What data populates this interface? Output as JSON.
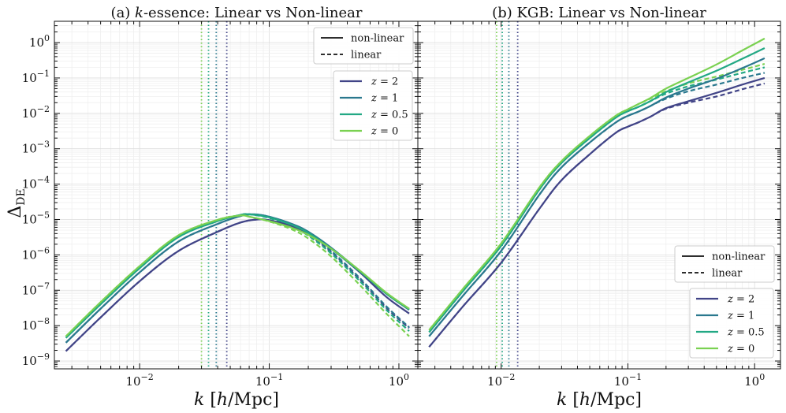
{
  "figure": {
    "ylabel": "Δ",
    "ylabel_sub": "DE",
    "xlabel": "k [h/Mpc]"
  },
  "chart_data": [
    {
      "type": "line",
      "title": "(a) k-essence: Linear vs Non-linear",
      "title_prefix": "(a) ",
      "title_italic": "k",
      "title_suffix": "-essence: Linear vs Non-linear",
      "xlabel": "k [h/Mpc]",
      "ylabel": "Δ_DE",
      "xscale": "log",
      "yscale": "log",
      "xlim": [
        0.0022,
        1.4
      ],
      "ylim": [
        6e-10,
        4
      ],
      "xticks": [
        {
          "v": 0.01,
          "label": "10^-2"
        },
        {
          "v": 0.1,
          "label": "10^-1"
        },
        {
          "v": 1,
          "label": "10^0"
        }
      ],
      "yticks": [
        {
          "v": 1e-09,
          "label": "10^-9"
        },
        {
          "v": 1e-08,
          "label": "10^-8"
        },
        {
          "v": 1e-07,
          "label": "10^-7"
        },
        {
          "v": 1e-06,
          "label": "10^-6"
        },
        {
          "v": 1e-05,
          "label": "10^-5"
        },
        {
          "v": 0.0001,
          "label": "10^-4"
        },
        {
          "v": 0.001,
          "label": "10^-3"
        },
        {
          "v": 0.01,
          "label": "10^-2"
        },
        {
          "v": 0.1,
          "label": "10^-1"
        },
        {
          "v": 1,
          "label": "10^0"
        }
      ],
      "grid": true,
      "vlines": [
        {
          "x": 0.047,
          "color": "#414487"
        },
        {
          "x": 0.039,
          "color": "#2a788e"
        },
        {
          "x": 0.034,
          "color": "#22a884"
        },
        {
          "x": 0.03,
          "color": "#7ad151"
        }
      ],
      "series": [
        {
          "name": "z = 2",
          "z": "2",
          "color": "#414487",
          "style": "non-linear",
          "x": [
            0.0027,
            0.005,
            0.01,
            0.02,
            0.04,
            0.06,
            0.08,
            0.1,
            0.15,
            0.2,
            0.3,
            0.5,
            0.8,
            1.2
          ],
          "y": [
            1.9e-09,
            1.7e-08,
            1.8e-07,
            1.3e-06,
            4.5e-06,
            8.2e-06,
            1e-05,
            9.5e-06,
            6.5e-06,
            4e-06,
            1.5e-06,
            3.2e-07,
            6.5e-08,
            2.2e-08
          ]
        },
        {
          "name": "z = 2",
          "z": "2",
          "color": "#414487",
          "style": "linear",
          "x": [
            0.0027,
            0.005,
            0.01,
            0.02,
            0.04,
            0.06,
            0.08,
            0.1,
            0.15,
            0.2,
            0.3,
            0.5,
            0.8,
            1.2
          ],
          "y": [
            1.9e-09,
            1.7e-08,
            1.8e-07,
            1.3e-06,
            4.5e-06,
            8.2e-06,
            1e-05,
            9.5e-06,
            6.3e-06,
            3.7e-06,
            1.2e-06,
            2e-07,
            3.2e-08,
            8.5e-09
          ]
        },
        {
          "name": "z = 1",
          "z": "1",
          "color": "#2a788e",
          "style": "non-linear",
          "x": [
            0.0027,
            0.005,
            0.01,
            0.02,
            0.04,
            0.06,
            0.075,
            0.1,
            0.15,
            0.2,
            0.3,
            0.5,
            0.8,
            1.2
          ],
          "y": [
            3.3e-09,
            3e-08,
            3.2e-07,
            2.4e-06,
            7.5e-06,
            1.25e-05,
            1.4e-05,
            1.2e-05,
            7.5e-06,
            4.5e-06,
            1.6e-06,
            3.5e-07,
            8e-08,
            2.8e-08
          ]
        },
        {
          "name": "z = 1",
          "z": "1",
          "color": "#2a788e",
          "style": "linear",
          "x": [
            0.0027,
            0.005,
            0.01,
            0.02,
            0.04,
            0.06,
            0.075,
            0.1,
            0.15,
            0.2,
            0.3,
            0.5,
            0.8,
            1.2
          ],
          "y": [
            3.3e-09,
            3e-08,
            3.2e-07,
            2.4e-06,
            7.5e-06,
            1.25e-05,
            1.4e-05,
            1.2e-05,
            7.2e-06,
            4.1e-06,
            1.3e-06,
            2.2e-07,
            3.5e-08,
            9e-09
          ]
        },
        {
          "name": "z = 0.5",
          "z": "0.5",
          "color": "#22a884",
          "style": "non-linear",
          "x": [
            0.0027,
            0.005,
            0.01,
            0.02,
            0.04,
            0.06,
            0.07,
            0.1,
            0.15,
            0.2,
            0.3,
            0.5,
            0.8,
            1.2
          ],
          "y": [
            4.5e-09,
            4e-08,
            4.2e-07,
            3.2e-06,
            9e-06,
            1.35e-05,
            1.4e-05,
            1.15e-05,
            7e-06,
            4.2e-06,
            1.5e-06,
            3.4e-07,
            8e-08,
            2.9e-08
          ]
        },
        {
          "name": "z = 0.5",
          "z": "0.5",
          "color": "#22a884",
          "style": "linear",
          "x": [
            0.0027,
            0.005,
            0.01,
            0.02,
            0.04,
            0.06,
            0.07,
            0.1,
            0.15,
            0.2,
            0.3,
            0.5,
            0.8,
            1.2
          ],
          "y": [
            4.5e-09,
            4e-08,
            4.2e-07,
            3.2e-06,
            9e-06,
            1.35e-05,
            1.4e-05,
            1.1e-05,
            6.3e-06,
            3.5e-06,
            1.1e-06,
            1.8e-07,
            2.8e-08,
            7e-09
          ]
        },
        {
          "name": "z = 0",
          "z": "0",
          "color": "#7ad151",
          "style": "non-linear",
          "x": [
            0.0027,
            0.005,
            0.01,
            0.02,
            0.04,
            0.06,
            0.07,
            0.1,
            0.15,
            0.2,
            0.3,
            0.5,
            0.8,
            1.2
          ],
          "y": [
            5e-09,
            4.6e-08,
            4.8e-07,
            3.6e-06,
            9.8e-06,
            1.3e-05,
            1.2e-05,
            9e-06,
            5.8e-06,
            3.7e-06,
            1.5e-06,
            3.6e-07,
            8.5e-08,
            3e-08
          ]
        },
        {
          "name": "z = 0",
          "z": "0",
          "color": "#7ad151",
          "style": "linear",
          "x": [
            0.0027,
            0.005,
            0.01,
            0.02,
            0.04,
            0.06,
            0.07,
            0.1,
            0.15,
            0.2,
            0.3,
            0.5,
            0.8,
            1.2
          ],
          "y": [
            5e-09,
            4.6e-08,
            4.8e-07,
            3.6e-06,
            9.8e-06,
            1.3e-05,
            1.2e-05,
            8.8e-06,
            5.2e-06,
            2.9e-06,
            9e-07,
            1.4e-07,
            2.2e-08,
            5e-09
          ]
        }
      ],
      "legend_style": {
        "position": "top-right",
        "entries": [
          {
            "label": "non-linear",
            "dash": false
          },
          {
            "label": "linear",
            "dash": true
          }
        ]
      },
      "legend_z": {
        "position": "upper-right",
        "entries": [
          {
            "label": "z = 2",
            "z": "2",
            "color": "#414487"
          },
          {
            "label": "z = 1",
            "z": "1",
            "color": "#2a788e"
          },
          {
            "label": "z = 0.5",
            "z": "0.5",
            "color": "#22a884"
          },
          {
            "label": "z = 0",
            "z": "0",
            "color": "#7ad151"
          }
        ]
      }
    },
    {
      "type": "line",
      "title": "(b) KGB: Linear vs Non-linear",
      "title_prefix": "(b) KGB: Linear vs Non-linear",
      "title_italic": "",
      "title_suffix": "",
      "xlabel": "k [h/Mpc]",
      "ylabel": "",
      "xscale": "log",
      "yscale": "log",
      "xlim": [
        0.0022,
        1.6
      ],
      "ylim": [
        6e-10,
        4
      ],
      "xticks": [
        {
          "v": 0.01,
          "label": "10^-2"
        },
        {
          "v": 0.1,
          "label": "10^-1"
        },
        {
          "v": 1,
          "label": "10^0"
        }
      ],
      "yticks": [],
      "grid": true,
      "vlines": [
        {
          "x": 0.0135,
          "color": "#414487"
        },
        {
          "x": 0.0115,
          "color": "#2a788e"
        },
        {
          "x": 0.0102,
          "color": "#22a884"
        },
        {
          "x": 0.0092,
          "color": "#7ad151"
        }
      ],
      "series": [
        {
          "name": "z = 2",
          "z": "2",
          "color": "#414487",
          "style": "non-linear",
          "x": [
            0.0027,
            0.005,
            0.01,
            0.02,
            0.03,
            0.05,
            0.08,
            0.1,
            0.12,
            0.15,
            0.2,
            0.3,
            0.5,
            0.8,
            1.2
          ],
          "y": [
            2.5e-09,
            3.5e-08,
            6e-07,
            2e-05,
            0.00013,
            0.0007,
            0.0028,
            0.0042,
            0.0055,
            0.008,
            0.014,
            0.022,
            0.038,
            0.065,
            0.1
          ]
        },
        {
          "name": "z = 2",
          "z": "2",
          "color": "#414487",
          "style": "linear",
          "x": [
            0.0027,
            0.005,
            0.01,
            0.02,
            0.03,
            0.05,
            0.08,
            0.1,
            0.12,
            0.15,
            0.2,
            0.3,
            0.5,
            0.8,
            1.2
          ],
          "y": [
            2.5e-09,
            3.5e-08,
            6e-07,
            2e-05,
            0.00013,
            0.0007,
            0.0028,
            0.0042,
            0.0055,
            0.008,
            0.0135,
            0.02,
            0.03,
            0.048,
            0.07
          ]
        },
        {
          "name": "z = 1",
          "z": "1",
          "color": "#2a788e",
          "style": "non-linear",
          "x": [
            0.0027,
            0.005,
            0.01,
            0.02,
            0.03,
            0.05,
            0.08,
            0.1,
            0.12,
            0.15,
            0.2,
            0.3,
            0.5,
            0.8,
            1.2
          ],
          "y": [
            5e-09,
            7e-08,
            1.3e-06,
            5e-05,
            0.0003,
            0.0015,
            0.0055,
            0.0085,
            0.011,
            0.016,
            0.028,
            0.05,
            0.095,
            0.19,
            0.36
          ]
        },
        {
          "name": "z = 1",
          "z": "1",
          "color": "#2a788e",
          "style": "linear",
          "x": [
            0.0027,
            0.005,
            0.01,
            0.02,
            0.03,
            0.05,
            0.08,
            0.1,
            0.12,
            0.15,
            0.2,
            0.3,
            0.5,
            0.8,
            1.2
          ],
          "y": [
            5e-09,
            7e-08,
            1.3e-06,
            5e-05,
            0.0003,
            0.0015,
            0.0055,
            0.0085,
            0.011,
            0.016,
            0.026,
            0.042,
            0.065,
            0.1,
            0.14
          ]
        },
        {
          "name": "z = 0.5",
          "z": "0.5",
          "color": "#22a884",
          "style": "non-linear",
          "x": [
            0.0027,
            0.005,
            0.01,
            0.02,
            0.03,
            0.05,
            0.08,
            0.1,
            0.12,
            0.15,
            0.2,
            0.3,
            0.5,
            0.8,
            1.2
          ],
          "y": [
            6.5e-09,
            9.5e-08,
            1.8e-06,
            7e-05,
            0.0004,
            0.002,
            0.0075,
            0.0115,
            0.015,
            0.022,
            0.04,
            0.075,
            0.16,
            0.35,
            0.7
          ]
        },
        {
          "name": "z = 0.5",
          "z": "0.5",
          "color": "#22a884",
          "style": "linear",
          "x": [
            0.0027,
            0.005,
            0.01,
            0.02,
            0.03,
            0.05,
            0.08,
            0.1,
            0.12,
            0.15,
            0.2,
            0.3,
            0.5,
            0.8,
            1.2
          ],
          "y": [
            6.5e-09,
            9.5e-08,
            1.8e-06,
            7e-05,
            0.0004,
            0.002,
            0.0075,
            0.0115,
            0.015,
            0.022,
            0.036,
            0.058,
            0.09,
            0.14,
            0.2
          ]
        },
        {
          "name": "z = 0",
          "z": "0",
          "color": "#7ad151",
          "style": "non-linear",
          "x": [
            0.0027,
            0.005,
            0.01,
            0.02,
            0.03,
            0.05,
            0.08,
            0.1,
            0.12,
            0.15,
            0.2,
            0.3,
            0.5,
            0.8,
            1.2
          ],
          "y": [
            7.5e-09,
            1.1e-07,
            2.1e-06,
            8e-05,
            0.00045,
            0.0023,
            0.0085,
            0.013,
            0.018,
            0.027,
            0.05,
            0.1,
            0.24,
            0.6,
            1.3
          ]
        },
        {
          "name": "z = 0",
          "z": "0",
          "color": "#7ad151",
          "style": "linear",
          "x": [
            0.0027,
            0.005,
            0.01,
            0.02,
            0.03,
            0.05,
            0.08,
            0.1,
            0.12,
            0.15,
            0.2,
            0.3,
            0.5,
            0.8,
            1.2
          ],
          "y": [
            7.5e-09,
            1.1e-07,
            2.1e-06,
            8e-05,
            0.00045,
            0.0023,
            0.0085,
            0.013,
            0.018,
            0.026,
            0.042,
            0.07,
            0.11,
            0.17,
            0.25
          ]
        }
      ],
      "legend_style": {
        "position": "lower-right",
        "entries": [
          {
            "label": "non-linear",
            "dash": false
          },
          {
            "label": "linear",
            "dash": true
          }
        ]
      },
      "legend_z": {
        "position": "lower-right",
        "entries": [
          {
            "label": "z = 2",
            "z": "2",
            "color": "#414487"
          },
          {
            "label": "z = 1",
            "z": "1",
            "color": "#2a788e"
          },
          {
            "label": "z = 0.5",
            "z": "0.5",
            "color": "#22a884"
          },
          {
            "label": "z = 0",
            "z": "0",
            "color": "#7ad151"
          }
        ]
      }
    }
  ]
}
